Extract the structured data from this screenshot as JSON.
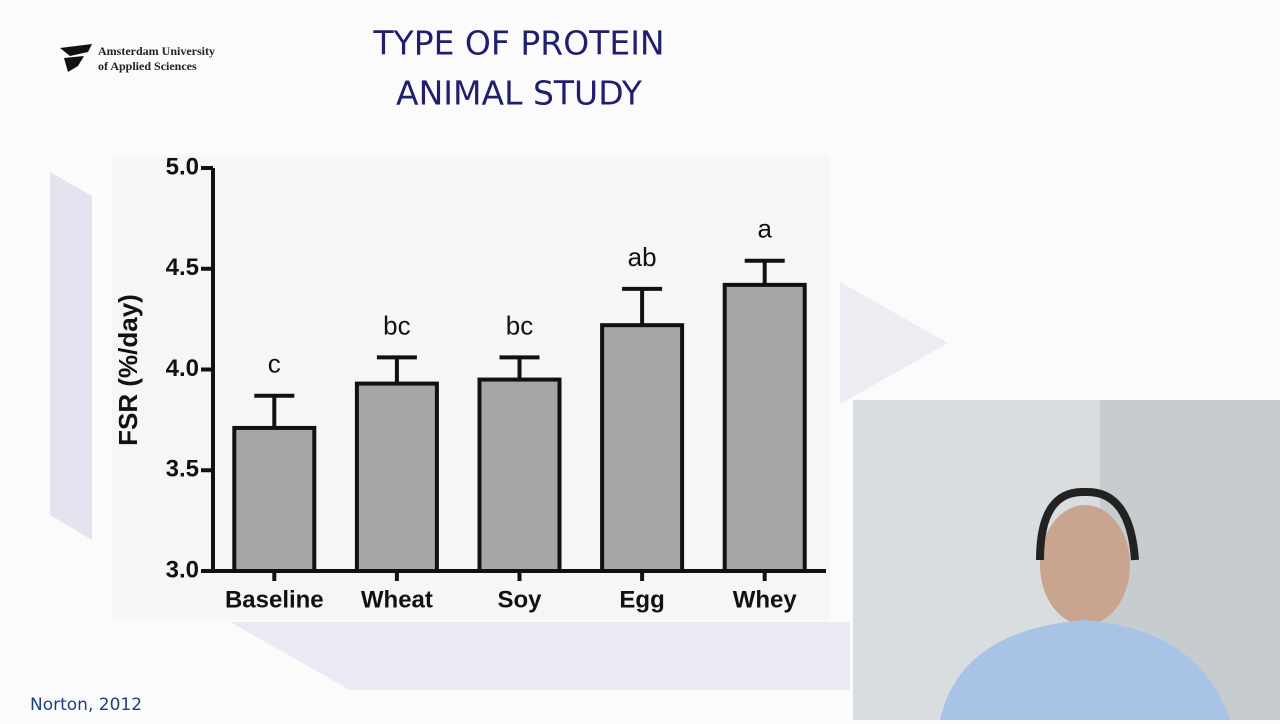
{
  "slide": {
    "logo": [
      "Amsterdam University",
      "of Applied Sciences"
    ],
    "title": [
      "TYPE OF PROTEIN",
      "ANIMAL STUDY"
    ],
    "citation": "Norton, 2012"
  },
  "chart_data": {
    "type": "bar",
    "y_label": "FSR (%/day)",
    "categories": [
      "Baseline",
      "Wheat",
      "Soy",
      "Egg",
      "Whey"
    ],
    "values": [
      3.71,
      3.93,
      3.95,
      4.22,
      4.42
    ],
    "errors": [
      0.16,
      0.13,
      0.11,
      0.18,
      0.12
    ],
    "annotations": [
      "c",
      "bc",
      "bc",
      "ab",
      "a"
    ],
    "color": "#a6a6a6",
    "ylim": [
      3,
      5
    ],
    "yticks": [
      {
        "value": 3,
        "label": "3.0"
      },
      {
        "value": 3.5,
        "label": "3.5"
      },
      {
        "value": 4,
        "label": "4.0"
      },
      {
        "value": 4.5,
        "label": "4.5"
      },
      {
        "value": 5,
        "label": "5.0"
      }
    ]
  }
}
